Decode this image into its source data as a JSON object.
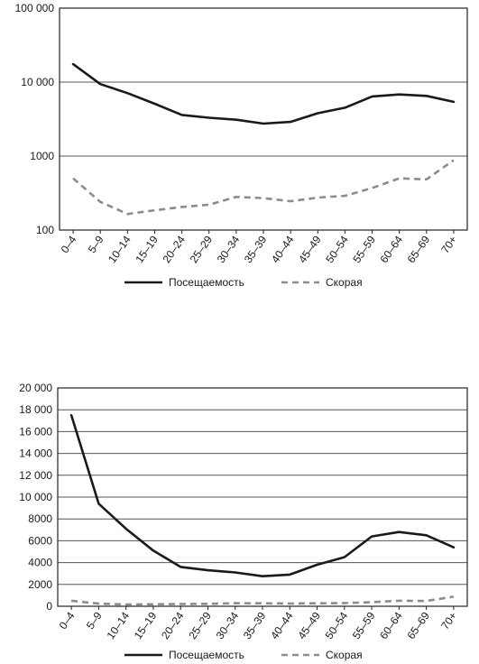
{
  "chart_data": [
    {
      "type": "line",
      "yscale": "log",
      "ylim": [
        100,
        100000
      ],
      "yticks": [
        {
          "value": 100,
          "label": "100"
        },
        {
          "value": 1000,
          "label": "1000"
        },
        {
          "value": 10000,
          "label": "10 000"
        },
        {
          "value": 100000,
          "label": "100 000"
        }
      ],
      "grid": "major-y",
      "legend": "bottom",
      "categories": [
        "0–4",
        "5–9",
        "10–14",
        "15–19",
        "20–24",
        "25–29",
        "30–34",
        "35–39",
        "40–44",
        "45–49",
        "50–54",
        "55–59",
        "60–64",
        "65–69",
        "70+"
      ],
      "series": [
        {
          "name": "Посещаемость",
          "style": "solid",
          "color": "#1a1a1a",
          "values": [
            17500,
            9400,
            7100,
            5100,
            3600,
            3300,
            3100,
            2750,
            2900,
            3800,
            4500,
            6400,
            6800,
            6500,
            5400
          ]
        },
        {
          "name": "Скорая",
          "style": "dashed",
          "color": "#8c8c8c",
          "values": [
            500,
            240,
            165,
            185,
            205,
            220,
            280,
            270,
            245,
            275,
            290,
            370,
            500,
            485,
            880
          ]
        }
      ]
    },
    {
      "type": "line",
      "yscale": "linear",
      "ylim": [
        0,
        20000
      ],
      "yticks": [
        {
          "value": 0,
          "label": "0"
        },
        {
          "value": 2000,
          "label": "2000"
        },
        {
          "value": 4000,
          "label": "4000"
        },
        {
          "value": 6000,
          "label": "6000"
        },
        {
          "value": 8000,
          "label": "8000"
        },
        {
          "value": 10000,
          "label": "10 000"
        },
        {
          "value": 12000,
          "label": "12 000"
        },
        {
          "value": 14000,
          "label": "14 000"
        },
        {
          "value": 16000,
          "label": "16 000"
        },
        {
          "value": 18000,
          "label": "18 000"
        },
        {
          "value": 20000,
          "label": "20 000"
        }
      ],
      "grid": "major-y",
      "legend": "bottom",
      "categories": [
        "0–4",
        "5–9",
        "10–14",
        "15–19",
        "20–24",
        "25–29",
        "30–34",
        "35–39",
        "40–44",
        "45–49",
        "50–54",
        "55–59",
        "60–64",
        "65–69",
        "70+"
      ],
      "series": [
        {
          "name": "Посещаемость",
          "style": "solid",
          "color": "#1a1a1a",
          "values": [
            17500,
            9400,
            7100,
            5100,
            3600,
            3300,
            3100,
            2750,
            2900,
            3800,
            4500,
            6400,
            6800,
            6500,
            5400
          ]
        },
        {
          "name": "Скорая",
          "style": "dashed",
          "color": "#8c8c8c",
          "values": [
            500,
            240,
            165,
            185,
            205,
            220,
            280,
            270,
            245,
            275,
            290,
            370,
            500,
            485,
            880
          ]
        }
      ]
    }
  ]
}
